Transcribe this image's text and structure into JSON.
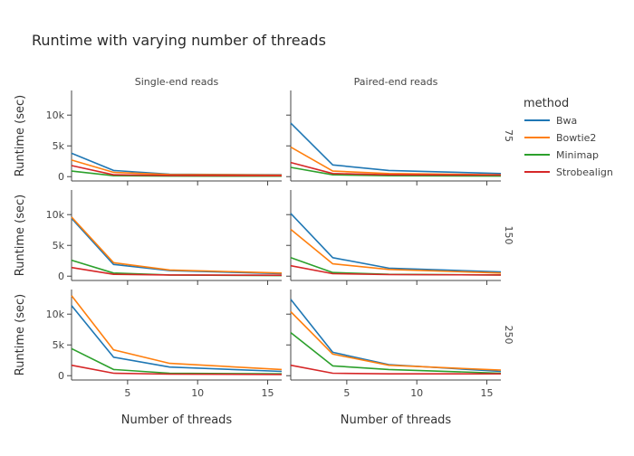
{
  "chart_data": {
    "type": "line",
    "title": "Runtime with varying number of threads",
    "xlabel": "Number of threads",
    "ylabel": "Runtime (sec)",
    "col_facets": [
      "Single-end reads",
      "Paired-end reads"
    ],
    "row_facets": [
      "75",
      "150",
      "250"
    ],
    "legend_title": "method",
    "legend_position": "right",
    "x": [
      1,
      4,
      8,
      16
    ],
    "xlim": [
      1,
      16
    ],
    "ylim": [
      -700,
      14000
    ],
    "xticks": [
      5,
      10,
      15
    ],
    "xtick_labels": [
      "5",
      "10",
      "15"
    ],
    "yticks": [
      0,
      5000,
      10000
    ],
    "ytick_labels": [
      "0",
      "5k",
      "10k"
    ],
    "grid": false,
    "series_meta": [
      {
        "name": "Bwa",
        "color": "#1f77b4"
      },
      {
        "name": "Bowtie2",
        "color": "#ff7f0e"
      },
      {
        "name": "Minimap",
        "color": "#2ca02c"
      },
      {
        "name": "Strobealign",
        "color": "#d62728"
      }
    ],
    "panels": [
      {
        "row": "75",
        "col": "Single-end reads",
        "series": [
          {
            "name": "Bwa",
            "values": [
              3800,
              1000,
              400,
              300
            ]
          },
          {
            "name": "Bowtie2",
            "values": [
              2700,
              700,
              350,
              250
            ]
          },
          {
            "name": "Minimap",
            "values": [
              900,
              150,
              100,
              80
            ]
          },
          {
            "name": "Strobealign",
            "values": [
              1800,
              300,
              200,
              150
            ]
          }
        ]
      },
      {
        "row": "75",
        "col": "Paired-end reads",
        "series": [
          {
            "name": "Bwa",
            "values": [
              8700,
              1900,
              1000,
              500
            ]
          },
          {
            "name": "Bowtie2",
            "values": [
              4800,
              900,
              500,
              300
            ]
          },
          {
            "name": "Minimap",
            "values": [
              1500,
              300,
              150,
              100
            ]
          },
          {
            "name": "Strobealign",
            "values": [
              2300,
              500,
              300,
              250
            ]
          }
        ]
      },
      {
        "row": "150",
        "col": "Single-end reads",
        "series": [
          {
            "name": "Bwa",
            "values": [
              9400,
              1900,
              900,
              400
            ]
          },
          {
            "name": "Bowtie2",
            "values": [
              9600,
              2200,
              1000,
              500
            ]
          },
          {
            "name": "Minimap",
            "values": [
              2600,
              500,
              200,
              100
            ]
          },
          {
            "name": "Strobealign",
            "values": [
              1400,
              300,
              200,
              150
            ]
          }
        ]
      },
      {
        "row": "150",
        "col": "Paired-end reads",
        "series": [
          {
            "name": "Bwa",
            "values": [
              10200,
              3000,
              1300,
              700
            ]
          },
          {
            "name": "Bowtie2",
            "values": [
              7600,
              2000,
              1100,
              500
            ]
          },
          {
            "name": "Minimap",
            "values": [
              3000,
              600,
              300,
              200
            ]
          },
          {
            "name": "Strobealign",
            "values": [
              1700,
              400,
              250,
              200
            ]
          }
        ]
      },
      {
        "row": "250",
        "col": "Single-end reads",
        "series": [
          {
            "name": "Bwa",
            "values": [
              11400,
              3000,
              1400,
              700
            ]
          },
          {
            "name": "Bowtie2",
            "values": [
              13000,
              4200,
              2000,
              1000
            ]
          },
          {
            "name": "Minimap",
            "values": [
              4400,
              1000,
              400,
              300
            ]
          },
          {
            "name": "Strobealign",
            "values": [
              1700,
              400,
              250,
              200
            ]
          }
        ]
      },
      {
        "row": "250",
        "col": "Paired-end reads",
        "series": [
          {
            "name": "Bwa",
            "values": [
              12400,
              3800,
              1800,
              700
            ]
          },
          {
            "name": "Bowtie2",
            "values": [
              10400,
              3500,
              1700,
              900
            ]
          },
          {
            "name": "Minimap",
            "values": [
              7000,
              1600,
              1000,
              400
            ]
          },
          {
            "name": "Strobealign",
            "values": [
              1700,
              400,
              300,
              300
            ]
          }
        ]
      }
    ]
  }
}
